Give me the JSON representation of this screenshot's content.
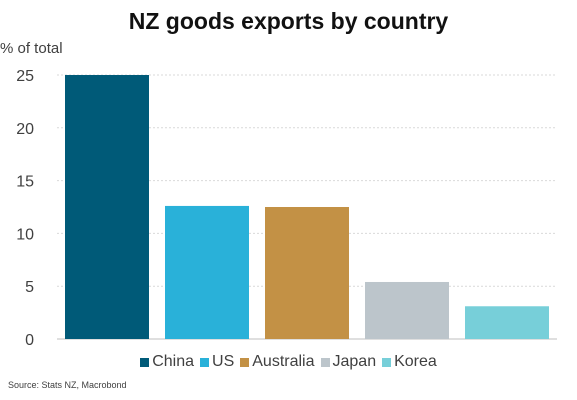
{
  "chart_data": {
    "type": "bar",
    "title": "NZ goods exports by country",
    "ylabel": "% of total",
    "xlabel": "",
    "categories": [
      "China",
      "US",
      "Australia",
      "Japan",
      "Korea"
    ],
    "values": [
      25.0,
      12.6,
      12.5,
      5.4,
      3.1
    ],
    "colors": [
      "#005a78",
      "#29b1d9",
      "#c39145",
      "#bcc5cb",
      "#77cfd9"
    ],
    "ylim": [
      0,
      25
    ],
    "yticks": [
      0,
      5,
      10,
      15,
      20,
      25
    ],
    "grid": true,
    "legend_position": "bottom"
  },
  "source": "Source: Stats NZ, Macrobond"
}
